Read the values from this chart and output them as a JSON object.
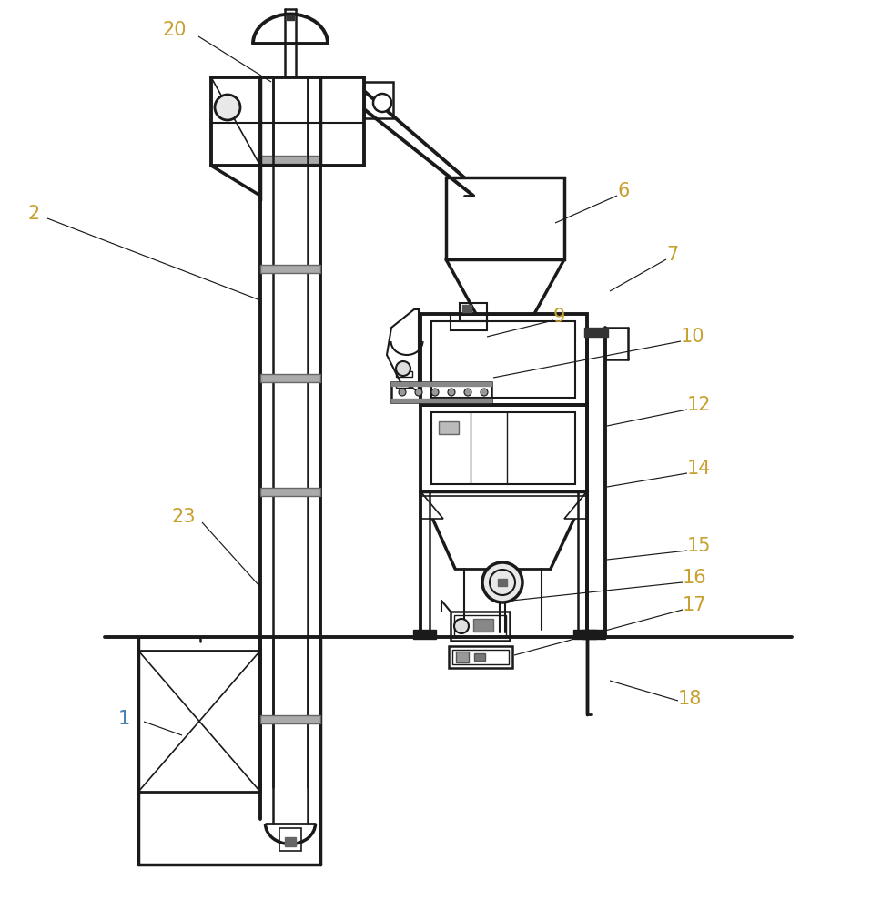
{
  "bg_color": "#ffffff",
  "line_color": "#1a1a1a",
  "gray_color": "#888888",
  "label_color": "#c8a030",
  "label_color_blue": "#4a7fb5",
  "label_fontsize": 15
}
